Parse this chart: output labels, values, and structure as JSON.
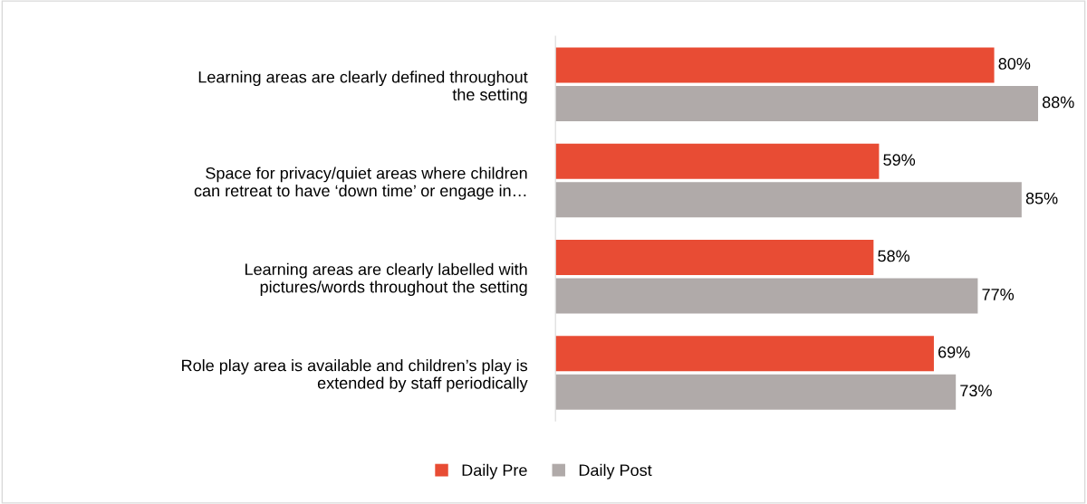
{
  "chart_data": {
    "type": "bar",
    "orientation": "horizontal",
    "categories": [
      "Learning areas are clearly defined throughout\nthe setting",
      "Space for privacy/quiet areas where children\ncan retreat to have ‘down time’ or engage in…",
      "Learning areas are clearly labelled with\npictures/words throughout the setting",
      "Role play area is available and children’s play is\nextended by staff periodically"
    ],
    "series": [
      {
        "name": "Daily Pre",
        "color": "#e84c34",
        "values": [
          80,
          59,
          58,
          69
        ],
        "value_labels": [
          "80%",
          "59%",
          "58%",
          "69%"
        ]
      },
      {
        "name": "Daily Post",
        "color": "#b0aaa9",
        "values": [
          88,
          85,
          77,
          73
        ],
        "value_labels": [
          "88%",
          "85%",
          "77%",
          "73%"
        ]
      }
    ],
    "tick_labels": "y",
    "grid": false,
    "legend": "bottom"
  }
}
